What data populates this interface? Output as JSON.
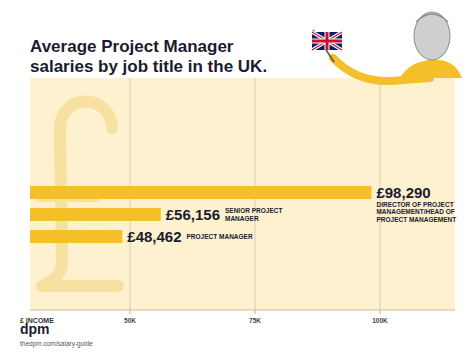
{
  "chart_data": {
    "type": "bar",
    "orientation": "horizontal",
    "title": "Average Project Manager salaries by job title in the UK.",
    "x_label": "£ INCOME",
    "categories": [
      "DIRECTOR OF PROJECT MANAGEMENT/HEAD OF PROJECT MANAGEMENT",
      "SENIOR PROJECT MANAGER",
      "PROJECT MANAGER"
    ],
    "values": [
      98290,
      56156,
      48462
    ],
    "value_labels": [
      "£98,290",
      "£56,156",
      "£48,462"
    ],
    "color": "#f5bf2a",
    "xlim": [
      30000,
      115000
    ],
    "xticks": [
      {
        "value": 50000,
        "label": "50K"
      },
      {
        "value": 75000,
        "label": "75K"
      },
      {
        "value": 100000,
        "label": "100K"
      }
    ],
    "grid": true,
    "data_labels": true,
    "tick_labels": "x",
    "brand": "dpm",
    "source": "thedpm.com/salary-guide"
  }
}
